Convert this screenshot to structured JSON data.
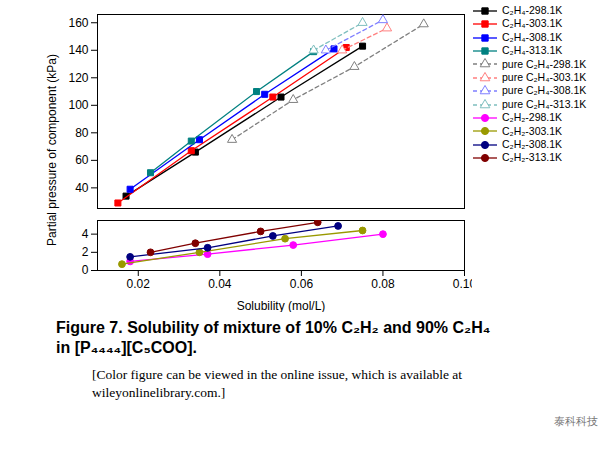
{
  "chart_data": [
    {
      "type": "line",
      "y_label": "Partial pressure of component (kPa)",
      "tick_labels": "y",
      "grid": false,
      "xlim": [
        0.01,
        0.1
      ],
      "ylim": [
        25,
        166
      ],
      "yticks": [
        40,
        60,
        80,
        100,
        120,
        140,
        160
      ],
      "series": [
        {
          "name": "C₂H₄-298.1K",
          "color": "#000000",
          "marker": "square",
          "line_style": "solid",
          "x": [
            0.017,
            0.034,
            0.055,
            0.075
          ],
          "values": [
            34,
            66,
            106,
            143
          ]
        },
        {
          "name": "C₂H₄-303.1K",
          "color": "#ff0000",
          "marker": "square",
          "line_style": "solid",
          "x": [
            0.015,
            0.033,
            0.053,
            0.071
          ],
          "values": [
            29,
            67,
            106,
            142
          ]
        },
        {
          "name": "C₂H₄-308.1K",
          "color": "#0000ff",
          "marker": "square",
          "line_style": "solid",
          "x": [
            0.018,
            0.035,
            0.051,
            0.068
          ],
          "values": [
            39,
            75,
            108,
            141
          ]
        },
        {
          "name": "C₂H₄-313.1K",
          "color": "#008080",
          "marker": "square",
          "line_style": "solid",
          "x": [
            0.023,
            0.033,
            0.049,
            0.063
          ],
          "values": [
            51,
            74,
            110,
            139
          ]
        },
        {
          "name": "pure C₂H₄-298.1K",
          "color": "#808080",
          "marker": "triangle-open",
          "line_style": "dashed",
          "x": [
            0.043,
            0.058,
            0.073,
            0.09
          ],
          "values": [
            75,
            104,
            128,
            159
          ]
        },
        {
          "name": "pure C₂H₄-303.1K",
          "color": "#ff7f7f",
          "marker": "triangle-open",
          "line_style": "dashed",
          "x": [
            0.07,
            0.081
          ],
          "values": [
            140,
            156
          ]
        },
        {
          "name": "pure C₂H₄-308.1K",
          "color": "#7f7fff",
          "marker": "triangle-open",
          "line_style": "dashed",
          "x": [
            0.066,
            0.08
          ],
          "values": [
            140,
            162
          ]
        },
        {
          "name": "pure C₂H₄-313.1K",
          "color": "#7fbfbf",
          "marker": "triangle-open",
          "line_style": "dashed",
          "x": [
            0.063,
            0.075
          ],
          "values": [
            140,
            160
          ]
        }
      ]
    },
    {
      "type": "line",
      "x_label": "Solubility (mol/L)",
      "grid": false,
      "xlim": [
        0.01,
        0.1
      ],
      "xticks": [
        0.02,
        0.04,
        0.06,
        0.08,
        {
          "value": 0.1,
          "label": "0.10"
        }
      ],
      "ylim": [
        0,
        5.5
      ],
      "yticks": [
        0,
        2,
        4
      ],
      "series": [
        {
          "name": "C₂H₂-298.1K",
          "color": "#ff00ff",
          "marker": "circle",
          "line_style": "solid",
          "x": [
            0.018,
            0.037,
            0.058,
            0.08
          ],
          "values": [
            1.0,
            1.8,
            2.8,
            4.0
          ]
        },
        {
          "name": "C₂H₂-303.1K",
          "color": "#999900",
          "marker": "circle",
          "line_style": "solid",
          "x": [
            0.016,
            0.035,
            0.056,
            0.075
          ],
          "values": [
            0.7,
            2.0,
            3.5,
            4.4
          ]
        },
        {
          "name": "C₂H₂-308.1K",
          "color": "#000080",
          "marker": "circle",
          "line_style": "solid",
          "x": [
            0.018,
            0.037,
            0.053,
            0.069
          ],
          "values": [
            1.5,
            2.5,
            3.8,
            4.9
          ]
        },
        {
          "name": "C₂H₂-313.1K",
          "color": "#800000",
          "marker": "circle",
          "line_style": "solid",
          "x": [
            0.023,
            0.034,
            0.05,
            0.064
          ],
          "values": [
            2.0,
            3.0,
            4.3,
            5.3
          ]
        }
      ]
    }
  ],
  "caption": "Figure 7. Solubility of mixture of 10% C₂H₂ and 90% C₂H₄ in [P₄₄₄₄][C₅COO].",
  "note": "[Color figure can be viewed in the online issue, which is available at wileyonlinelibrary.com.]",
  "watermark": "泰科科技"
}
